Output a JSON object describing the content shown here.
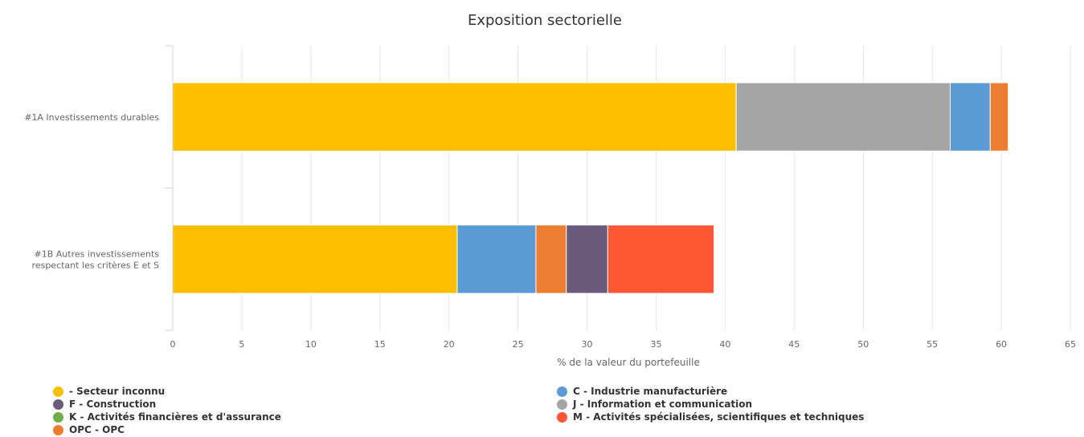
{
  "chart_data": {
    "type": "bar",
    "orientation": "horizontal",
    "stacked": true,
    "title": "Exposition sectorielle",
    "xlabel": "% de la valeur du portefeuille",
    "ylabel": "",
    "xlim": [
      0,
      65
    ],
    "x_ticks": [
      "0",
      "5",
      "10",
      "15",
      "20",
      "25",
      "30",
      "35",
      "40",
      "45",
      "50",
      "55",
      "60",
      "65"
    ],
    "grid": true,
    "legend_position": "bottom",
    "categories": [
      [
        "#1A Investissements durables"
      ],
      [
        "#1B Autres investissements",
        "respectant les critères E et S"
      ]
    ],
    "series": [
      {
        "name": "- Secteur inconnu",
        "color": "#FDBE00",
        "values": [
          40.8,
          20.6
        ]
      },
      {
        "name": "C - Industrie manufacturière",
        "color": "#5B9BD5",
        "values": [
          2.9,
          5.7
        ]
      },
      {
        "name": "F - Construction",
        "color": "#6A5A7B",
        "values": [
          0,
          3.0
        ]
      },
      {
        "name": "J - Information et communication",
        "color": "#A5A5A5",
        "values": [
          15.5,
          0
        ]
      },
      {
        "name": "K - Activités financières et d'assurance",
        "color": "#70AD47",
        "values": [
          0,
          0
        ]
      },
      {
        "name": "M - Activités spécialisées, scientifiques et techniques",
        "color": "#FF5733",
        "values": [
          0,
          7.7
        ]
      },
      {
        "name": "OPC - OPC",
        "color": "#ED7D31",
        "values": [
          1.3,
          2.2
        ]
      }
    ],
    "stack_order": [
      [
        "- Secteur inconnu",
        "J - Information et communication",
        "C - Industrie manufacturière",
        "OPC - OPC"
      ],
      [
        "- Secteur inconnu",
        "C - Industrie manufacturière",
        "OPC - OPC",
        "F - Construction",
        "M - Activités spécialisées, scientifiques et techniques"
      ]
    ]
  }
}
